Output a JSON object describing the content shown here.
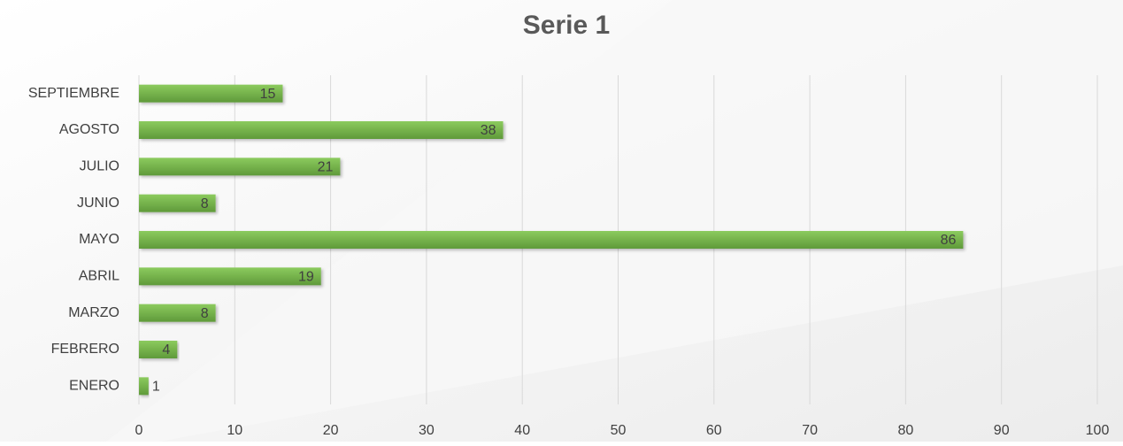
{
  "chart_data": {
    "type": "bar",
    "orientation": "horizontal",
    "title": "Serie 1",
    "categories": [
      "ENERO",
      "FEBRERO",
      "MARZO",
      "ABRIL",
      "MAYO",
      "JUNIO",
      "JULIO",
      "AGOSTO",
      "SEPTIEMBRE"
    ],
    "values": [
      1,
      4,
      8,
      19,
      86,
      8,
      21,
      38,
      15
    ],
    "color": "#70ad47",
    "xlim": [
      0,
      100
    ],
    "xticks": [
      0,
      10,
      20,
      30,
      40,
      50,
      60,
      70,
      80,
      90,
      100
    ],
    "grid": true
  }
}
